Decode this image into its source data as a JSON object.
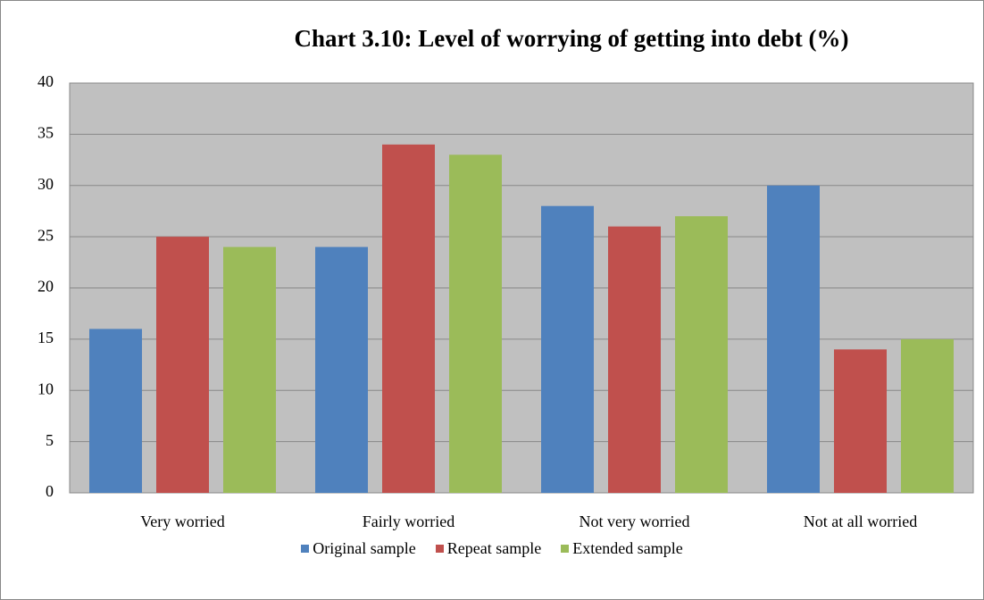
{
  "chart_data": {
    "type": "bar",
    "title": "Chart 3.10: Level of worrying of getting into debt (%)",
    "categories": [
      "Very worried",
      "Fairly worried",
      "Not very worried",
      "Not at all worried"
    ],
    "series": [
      {
        "name": "Original sample",
        "color": "#4f81bd",
        "values": [
          16,
          24,
          28,
          30
        ]
      },
      {
        "name": "Repeat sample",
        "color": "#c0504d",
        "values": [
          25,
          34,
          26,
          14
        ]
      },
      {
        "name": "Extended sample",
        "color": "#9bbb59",
        "values": [
          24,
          33,
          27,
          15
        ]
      }
    ],
    "ylim": [
      0,
      40
    ],
    "yticks": [
      0,
      5,
      10,
      15,
      20,
      25,
      30,
      35,
      40
    ],
    "grid": true,
    "legend": "bottom",
    "plot_background": "#c0c0c0"
  }
}
